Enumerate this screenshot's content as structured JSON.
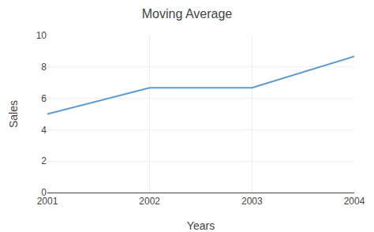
{
  "chart_data": {
    "type": "line",
    "title": "Moving Average",
    "xlabel": "Years",
    "ylabel": "Sales",
    "x": [
      2001,
      2002,
      2002.5,
      2003,
      2004
    ],
    "values": [
      5.0,
      6.67,
      6.67,
      6.67,
      8.67
    ],
    "color": "#5b9bd5",
    "xlim": [
      2001,
      2004
    ],
    "ylim": [
      0,
      10
    ],
    "xticks": [
      2001,
      2002,
      2003,
      2004
    ],
    "yticks": [
      0,
      2,
      4,
      6,
      8,
      10
    ],
    "grid": true
  }
}
